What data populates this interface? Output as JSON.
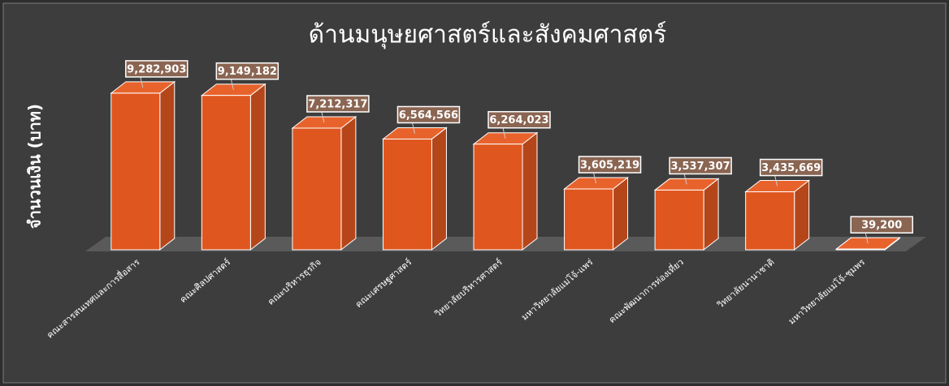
{
  "chart_data": {
    "type": "bar3d",
    "title": "ด้านมนุษยศาสตร์และสังคมศาสตร์",
    "y_label": "จำนวนเงิน (บาท)",
    "categories": [
      "คณะสารสนเทศและการสื่อสาร",
      "คณะศิลปศาสตร์",
      "คณะบริหารธุรกิจ",
      "คณะเศรษฐศาสตร์",
      "วิทยาลัยบริหารศาสตร์",
      "มหาวิทยาลัยแม่โจ้-แพร่",
      "คณะพัฒนาการท่องเที่ยว",
      "วิทยาลัยนานาชาติ",
      "มหาวิทยาลัยแม่โจ้-ชุมพร"
    ],
    "values": [
      9282903,
      9149182,
      7212317,
      6564566,
      6264023,
      3605219,
      3537307,
      3435669,
      39200
    ],
    "value_labels": [
      "9,282,903",
      "9,149,182",
      "7,212,317",
      "6,564,566",
      "6,264,023",
      "3,605,219",
      "3,537,307",
      "3,435,669",
      "39,200"
    ],
    "color": "#e0561f",
    "ylim": [
      0,
      10000000
    ]
  }
}
